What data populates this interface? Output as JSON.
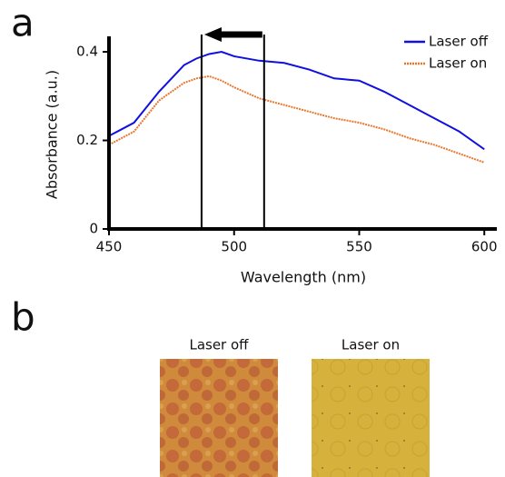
{
  "chart_data": {
    "type": "line",
    "x_label": "Wavelength (nm)",
    "y_label": "Absorbance (a.u.)",
    "x": [
      450,
      460,
      470,
      480,
      485,
      490,
      495,
      500,
      510,
      520,
      530,
      540,
      550,
      560,
      570,
      580,
      590,
      600
    ],
    "series": [
      {
        "name": "Laser off",
        "color": "#1010e0",
        "style": "solid",
        "values": [
          0.21,
          0.24,
          0.31,
          0.37,
          0.385,
          0.395,
          0.4,
          0.39,
          0.38,
          0.375,
          0.36,
          0.34,
          0.335,
          0.31,
          0.28,
          0.25,
          0.22,
          0.18
        ]
      },
      {
        "name": "Laser on",
        "color": "#e8772e",
        "style": "dotted",
        "values": [
          0.19,
          0.22,
          0.29,
          0.33,
          0.34,
          0.345,
          0.335,
          0.32,
          0.295,
          0.28,
          0.265,
          0.25,
          0.24,
          0.225,
          0.205,
          0.19,
          0.17,
          0.15
        ]
      }
    ],
    "xlim": [
      450,
      605
    ],
    "ylim": [
      0,
      0.435
    ],
    "xticks": [
      450,
      500,
      550,
      600
    ],
    "yticks": [
      0,
      0.2,
      0.4
    ],
    "vlines": [
      487,
      512
    ],
    "legend": "top-right"
  },
  "figure": {
    "panel_a_label": "a",
    "panel_b_label": "b",
    "images": [
      {
        "label": "Laser off"
      },
      {
        "label": "Laser on"
      }
    ]
  }
}
